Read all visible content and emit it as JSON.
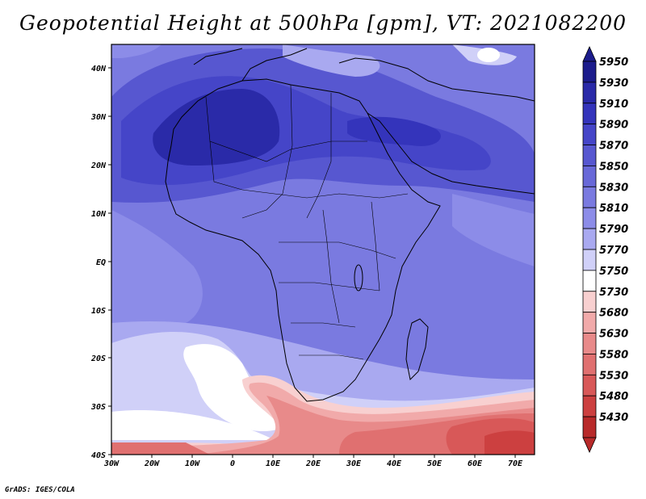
{
  "title": "Geopotential Height at 500hPa [gpm], VT: 2021082200",
  "credit": "GrADS: IGES/COLA",
  "map": {
    "variable": "Geopotential Height at 500hPa",
    "units": "gpm",
    "valid_time": "2021082200",
    "lon_ticks": [
      "30W",
      "20W",
      "10W",
      "0",
      "10E",
      "20E",
      "30E",
      "40E",
      "50E",
      "60E",
      "70E"
    ],
    "lat_ticks": [
      "40N",
      "30N",
      "20N",
      "10N",
      "EQ",
      "10S",
      "20S",
      "30S",
      "40S"
    ]
  },
  "colorbar": {
    "levels": [
      "5950",
      "5930",
      "5910",
      "5890",
      "5870",
      "5850",
      "5830",
      "5810",
      "5790",
      "5770",
      "5750",
      "5730",
      "5680",
      "5630",
      "5580",
      "5530",
      "5480",
      "5430"
    ],
    "colors": [
      "#1c1c8c",
      "#2a2aa8",
      "#3434bb",
      "#4545c8",
      "#5757d0",
      "#6868d8",
      "#7a7ae0",
      "#8c8ce8",
      "#a9a9f0",
      "#d0d0f8",
      "#ffffff",
      "#f8d0d0",
      "#f1aaaa",
      "#e88a8a",
      "#e07070",
      "#d85858",
      "#cc4040",
      "#b82a2a"
    ]
  }
}
